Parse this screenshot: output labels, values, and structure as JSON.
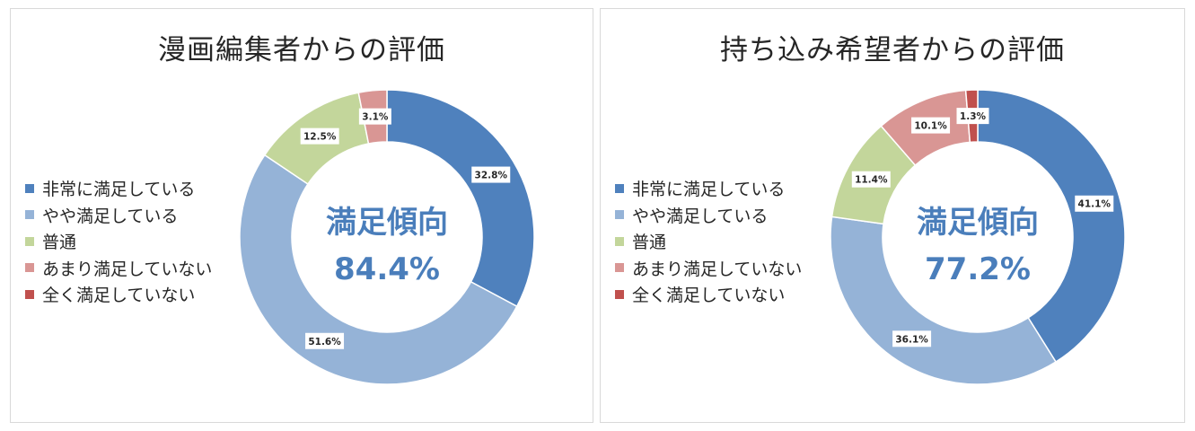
{
  "chart_data": [
    {
      "type": "pie",
      "variant": "donut",
      "title": "漫画編集者からの評価",
      "center_label": "満足傾向",
      "center_value": "84.4%",
      "categories": [
        "非常に満足している",
        "やや満足している",
        "普通",
        "あまり満足していない",
        "全く満足していない"
      ],
      "values": [
        32.8,
        51.6,
        12.5,
        3.1,
        0
      ],
      "data_labels": [
        "32.8%",
        "51.6%",
        "12.5%",
        "3.1%",
        ""
      ],
      "colors": [
        "#4f81bd",
        "#95b3d7",
        "#c3d69b",
        "#d99694",
        "#c0504d"
      ],
      "legend_position": "left"
    },
    {
      "type": "pie",
      "variant": "donut",
      "title": "持ち込み希望者からの評価",
      "center_label": "満足傾向",
      "center_value": "77.2%",
      "categories": [
        "非常に満足している",
        "やや満足している",
        "普通",
        "あまり満足していない",
        "全く満足していない"
      ],
      "values": [
        41.1,
        36.1,
        11.4,
        10.1,
        1.3
      ],
      "data_labels": [
        "41.1%",
        "36.1%",
        "11.4%",
        "10.1%",
        "1.3%"
      ],
      "colors": [
        "#4f81bd",
        "#95b3d7",
        "#c3d69b",
        "#d99694",
        "#c0504d"
      ],
      "legend_position": "left"
    }
  ]
}
